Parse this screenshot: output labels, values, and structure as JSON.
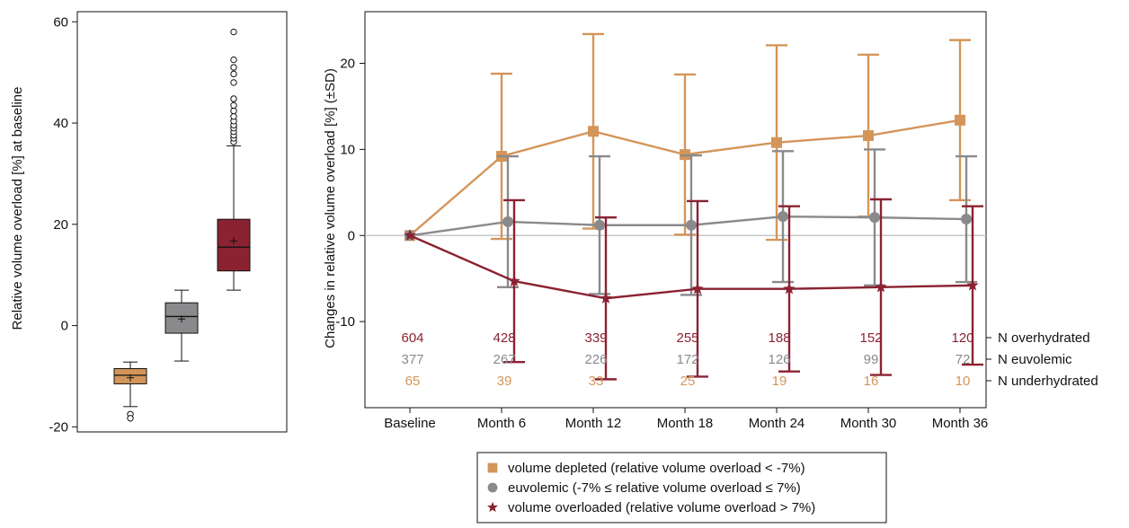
{
  "colors": {
    "depleted": "#d4955a",
    "euvolemic": "#8a8a8d",
    "overloaded": "#8b2232",
    "zero_line": "#bbbbbb",
    "axis": "#111111"
  },
  "chart_data": [
    {
      "type": "box",
      "ylabel": "Relative volume overload [%] at baseline",
      "ylim": [
        -21,
        62
      ],
      "yticks": [
        "-20",
        "0",
        "20",
        "40",
        "60"
      ],
      "ytick_values": [
        -20,
        0,
        20,
        40,
        60
      ],
      "boxes": [
        {
          "group": "volume depleted",
          "color_key": "depleted",
          "whisker_low": -16,
          "q1": -11.5,
          "median": -9.8,
          "q3": -8.5,
          "whisker_high": -7.2,
          "mean": -10.3,
          "outliers": [
            -17.5,
            -18.3
          ]
        },
        {
          "group": "euvolemic",
          "color_key": "euvolemic",
          "whisker_low": -7,
          "q1": -1.5,
          "median": 1.8,
          "q3": 4.5,
          "whisker_high": 7,
          "mean": 1.3,
          "outliers": []
        },
        {
          "group": "volume overloaded",
          "color_key": "overloaded",
          "whisker_low": 7,
          "q1": 10.8,
          "median": 15.5,
          "q3": 21,
          "whisker_high": 35.5,
          "mean": 16.7,
          "outliers": [
            36.3,
            37,
            37.6,
            38.3,
            39,
            39.6,
            40.4,
            41.3,
            42.4,
            43.5,
            44.8,
            48,
            49.7,
            51,
            52.5,
            58
          ]
        }
      ]
    },
    {
      "type": "line",
      "ylabel": "Changes in relative volume overload [%] (±SD)",
      "ylim": [
        -20,
        26
      ],
      "yticks": [
        "-10",
        "0",
        "10",
        "20"
      ],
      "ytick_values": [
        -10,
        0,
        10,
        20
      ],
      "categories": [
        "Baseline",
        "Month 6",
        "Month 12",
        "Month 18",
        "Month 24",
        "Month 30",
        "Month 36"
      ],
      "series": [
        {
          "color_key": "depleted",
          "marker": "square",
          "mean": [
            0,
            9.2,
            12.1,
            9.4,
            10.8,
            11.6,
            13.4
          ],
          "sd": [
            0,
            9.6,
            11.3,
            9.3,
            11.3,
            9.4,
            9.3
          ]
        },
        {
          "color_key": "euvolemic",
          "marker": "circle",
          "mean": [
            0,
            1.6,
            1.2,
            1.2,
            2.2,
            2.1,
            1.9
          ],
          "sd": [
            0,
            7.6,
            8.0,
            8.1,
            7.6,
            7.9,
            7.3
          ]
        },
        {
          "color_key": "overloaded",
          "marker": "star",
          "mean": [
            0,
            -5.3,
            -7.3,
            -6.2,
            -6.2,
            -6.0,
            -5.8
          ],
          "sd": [
            0,
            9.4,
            9.4,
            10.2,
            9.6,
            10.2,
            9.2
          ]
        }
      ],
      "n_rows": [
        {
          "label": "N overhydrated",
          "color_key": "overloaded",
          "values": [
            "604",
            "428",
            "339",
            "255",
            "188",
            "152",
            "120"
          ]
        },
        {
          "label": "N euvolemic",
          "color_key": "euvolemic",
          "values": [
            "377",
            "267",
            "226",
            "172",
            "126",
            "99",
            "72"
          ]
        },
        {
          "label": "N underhydrated",
          "color_key": "depleted",
          "values": [
            "65",
            "39",
            "33",
            "25",
            "19",
            "16",
            "10"
          ]
        }
      ]
    }
  ],
  "legend": {
    "items": [
      {
        "marker": "square",
        "color_key": "depleted",
        "label": "volume depleted (relative volume overload < -7%)"
      },
      {
        "marker": "circle",
        "color_key": "euvolemic",
        "label": "euvolemic (-7% ≤  relative volume overload ≤ 7%)"
      },
      {
        "marker": "star",
        "color_key": "overloaded",
        "label": "volume overloaded (relative volume overload > 7%)"
      }
    ]
  }
}
